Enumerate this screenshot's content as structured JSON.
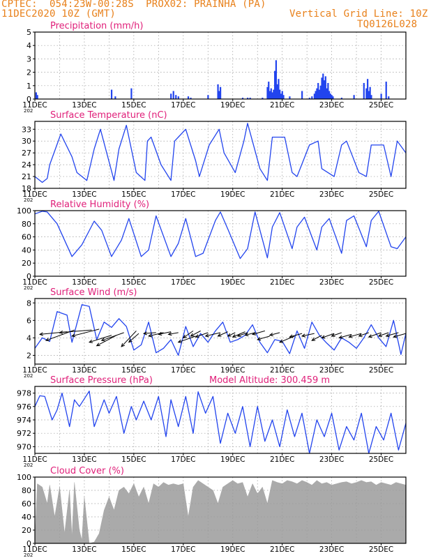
{
  "header": {
    "line1_left": "CPTEC:  054:23W-00:28S  PROX02: PRAINHA (PA)",
    "line2_left": "11DEC2020 10Z (GMT)",
    "line2_right": "Vertical Grid Line: 10Z",
    "line3_right": "TQ0126L028",
    "color": "#e8801a"
  },
  "x_ticks": [
    "11DEC",
    "13DEC",
    "15DEC",
    "17DEC",
    "19DEC",
    "21DEC",
    "23DEC",
    "25DEC"
  ],
  "x_sub": "202",
  "colors": {
    "series": "#2244ee",
    "title": "#e0207a",
    "cloud": "#aaaaaa",
    "grid": "#999999"
  },
  "chart_data": [
    {
      "id": "precip",
      "type": "bar",
      "title": "Precipitation (mm/h)",
      "xlim": [
        0,
        15
      ],
      "ylim": [
        0,
        5
      ],
      "yticks": [
        0,
        1,
        2,
        3,
        4,
        5
      ],
      "x": [
        0.05,
        0.1,
        3.1,
        3.25,
        3.9,
        5.5,
        5.6,
        5.7,
        5.8,
        6.2,
        6.3,
        7.0,
        7.4,
        7.45,
        7.5,
        8.4,
        8.6,
        8.7,
        9.2,
        9.4,
        9.45,
        9.5,
        9.55,
        9.6,
        9.65,
        9.7,
        9.75,
        9.8,
        9.85,
        9.9,
        9.95,
        10.0,
        10.05,
        10.3,
        10.8,
        11.1,
        11.2,
        11.3,
        11.35,
        11.4,
        11.45,
        11.5,
        11.55,
        11.6,
        11.65,
        11.7,
        11.75,
        11.8,
        11.85,
        11.9,
        11.95,
        12.0,
        12.05,
        12.4,
        12.9,
        13.3,
        13.4,
        13.45,
        13.5,
        13.55,
        13.6,
        14.0,
        14.2,
        14.3
      ],
      "values": [
        0.5,
        0.3,
        0.7,
        0.2,
        0.8,
        0.4,
        0.6,
        0.3,
        0.2,
        0.2,
        0.1,
        0.3,
        1.1,
        0.6,
        0.9,
        0.1,
        0.1,
        0.1,
        0.1,
        0.9,
        1.3,
        0.6,
        0.8,
        0.5,
        0.7,
        2.1,
        2.9,
        1.1,
        1.5,
        0.7,
        0.4,
        0.6,
        0.3,
        0.2,
        0.6,
        0.1,
        0.2,
        0.4,
        0.6,
        0.8,
        1.2,
        0.7,
        1.0,
        1.6,
        1.9,
        1.4,
        1.7,
        0.8,
        1.2,
        0.6,
        0.4,
        0.3,
        0.2,
        0.1,
        0.3,
        1.2,
        0.8,
        1.5,
        0.6,
        0.9,
        0.3,
        0.4,
        1.3,
        0.2
      ]
    },
    {
      "id": "temp",
      "type": "line",
      "title": "Surface Temperature (nC)",
      "xlim": [
        0,
        15
      ],
      "ylim": [
        18,
        35
      ],
      "yticks": [
        18,
        21,
        24,
        27,
        30,
        33
      ],
      "x": [
        0,
        0.3,
        0.5,
        0.6,
        1.05,
        1.5,
        1.7,
        2.1,
        2.4,
        2.65,
        3.2,
        3.4,
        3.7,
        4.1,
        4.45,
        4.55,
        4.7,
        5.1,
        5.5,
        5.65,
        6.1,
        6.5,
        6.65,
        7.05,
        7.45,
        7.65,
        8.1,
        8.45,
        8.6,
        9.1,
        9.4,
        9.6,
        10.1,
        10.4,
        10.6,
        11.1,
        11.45,
        11.6,
        12.1,
        12.4,
        12.6,
        13.1,
        13.4,
        13.6,
        14.1,
        14.4,
        14.65,
        15
      ],
      "y": [
        21,
        19.5,
        20.5,
        24,
        31.8,
        26,
        22,
        20,
        28,
        33,
        20,
        28,
        34,
        22,
        20,
        30,
        31,
        24,
        20,
        30,
        33,
        25,
        21,
        29,
        33,
        27,
        22,
        30,
        34.5,
        23,
        20,
        31,
        31,
        22,
        21,
        29,
        30,
        23,
        21,
        29,
        30,
        22,
        21,
        29,
        29,
        21,
        30,
        27
      ]
    },
    {
      "id": "rh",
      "type": "line",
      "title": "Relative Humidity (%)",
      "xlim": [
        0,
        15
      ],
      "ylim": [
        0,
        100
      ],
      "yticks": [
        0,
        20,
        40,
        60,
        80,
        100
      ],
      "x": [
        0,
        0.3,
        0.5,
        0.9,
        1.5,
        1.9,
        2.4,
        2.7,
        3.1,
        3.5,
        3.8,
        4.3,
        4.6,
        4.9,
        5.5,
        5.8,
        6.1,
        6.5,
        6.8,
        7.3,
        7.5,
        7.8,
        8.3,
        8.6,
        8.9,
        9.4,
        9.6,
        9.9,
        10.4,
        10.6,
        10.9,
        11.4,
        11.6,
        11.9,
        12.4,
        12.6,
        12.9,
        13.4,
        13.6,
        13.9,
        14.4,
        14.65,
        15
      ],
      "y": [
        95,
        99,
        98,
        80,
        30,
        48,
        84,
        70,
        30,
        55,
        88,
        30,
        40,
        92,
        30,
        50,
        88,
        30,
        35,
        85,
        98,
        72,
        27,
        42,
        98,
        28,
        75,
        97,
        42,
        75,
        90,
        40,
        75,
        88,
        35,
        85,
        92,
        45,
        85,
        99,
        45,
        42,
        60
      ]
    },
    {
      "id": "wind",
      "type": "line",
      "title": "Surface Wind (m/s)",
      "xlim": [
        0,
        15
      ],
      "ylim": [
        1,
        8.5
      ],
      "yticks": [
        2,
        4,
        6,
        8
      ],
      "x": [
        0,
        0.3,
        0.6,
        0.9,
        1.3,
        1.5,
        1.9,
        2.2,
        2.5,
        2.8,
        3.1,
        3.4,
        3.7,
        4.0,
        4.3,
        4.6,
        4.9,
        5.2,
        5.5,
        5.8,
        6.1,
        6.4,
        6.7,
        7.0,
        7.3,
        7.6,
        7.9,
        8.2,
        8.5,
        8.8,
        9.1,
        9.4,
        9.7,
        10.0,
        10.3,
        10.6,
        10.9,
        11.2,
        11.5,
        11.8,
        12.1,
        12.4,
        12.7,
        13.0,
        13.3,
        13.6,
        13.9,
        14.2,
        14.5,
        14.8,
        15
      ],
      "y": [
        2.8,
        4.0,
        3.6,
        7.0,
        6.6,
        3.5,
        7.8,
        7.6,
        3.8,
        5.8,
        5.2,
        6.2,
        5.3,
        2.6,
        3.2,
        5.8,
        2.3,
        2.8,
        3.8,
        2.0,
        5.3,
        3.0,
        4.5,
        3.5,
        4.8,
        5.8,
        3.5,
        3.8,
        4.3,
        5.5,
        3.5,
        2.3,
        3.8,
        3.6,
        2.2,
        4.8,
        2.8,
        5.8,
        4.3,
        3.4,
        2.6,
        4.0,
        3.5,
        2.8,
        4.0,
        5.5,
        4.0,
        3.0,
        6.0,
        2.1,
        4.5
      ],
      "barbs": [
        [
          0.2,
          4.4,
          1.3,
          4.7
        ],
        [
          0.45,
          3.7,
          1.6,
          4.9
        ],
        [
          1.0,
          4.6,
          2.3,
          4.9
        ],
        [
          1.5,
          4.2,
          2.6,
          5.0
        ],
        [
          2.2,
          3.5,
          3.1,
          4.3
        ],
        [
          2.7,
          3.7,
          3.6,
          4.6
        ],
        [
          2.5,
          3.1,
          3.3,
          4.3
        ],
        [
          3.5,
          3.0,
          4.1,
          4.8
        ],
        [
          3.8,
          3.5,
          4.2,
          4.5
        ],
        [
          4.4,
          4.5,
          4.9,
          4.6
        ],
        [
          4.6,
          4.2,
          5.2,
          4.6
        ],
        [
          5.0,
          4.4,
          5.5,
          4.7
        ],
        [
          5.4,
          4.4,
          5.8,
          4.6
        ],
        [
          5.8,
          3.5,
          6.5,
          4.2
        ],
        [
          6.0,
          4.0,
          6.4,
          4.8
        ],
        [
          6.3,
          4.2,
          6.7,
          4.8
        ],
        [
          6.5,
          4.1,
          7.0,
          4.6
        ],
        [
          6.9,
          4.2,
          7.5,
          4.6
        ],
        [
          7.4,
          4.2,
          7.8,
          4.7
        ],
        [
          7.8,
          4.2,
          8.1,
          4.6
        ],
        [
          8.0,
          4.1,
          8.5,
          4.7
        ],
        [
          8.2,
          4.2,
          8.6,
          4.6
        ],
        [
          8.5,
          4.3,
          8.9,
          4.6
        ],
        [
          8.8,
          4.4,
          9.3,
          4.8
        ],
        [
          9.0,
          3.8,
          9.5,
          4.2
        ],
        [
          9.5,
          4.3,
          9.9,
          4.6
        ],
        [
          9.9,
          3.5,
          10.5,
          4.2
        ],
        [
          10.3,
          4.1,
          10.8,
          4.5
        ],
        [
          10.8,
          4.2,
          11.3,
          4.5
        ],
        [
          11.2,
          3.7,
          11.6,
          4.3
        ],
        [
          11.6,
          4.0,
          12.1,
          4.5
        ],
        [
          12.0,
          4.2,
          12.4,
          4.6
        ],
        [
          12.3,
          4.0,
          12.8,
          4.4
        ],
        [
          12.7,
          4.1,
          13.2,
          4.5
        ],
        [
          13.1,
          4.2,
          13.5,
          4.6
        ],
        [
          13.5,
          4.1,
          14.0,
          4.6
        ],
        [
          13.9,
          4.2,
          14.3,
          4.6
        ],
        [
          14.2,
          4.2,
          14.7,
          4.6
        ],
        [
          14.5,
          4.1,
          15.0,
          4.5
        ]
      ]
    },
    {
      "id": "press",
      "type": "line",
      "title": "Surface Pressure (hPa)",
      "extra_label": "Model Altitude: 300.459 m",
      "xlim": [
        0,
        15
      ],
      "ylim": [
        969,
        979
      ],
      "yticks": [
        970,
        972,
        974,
        976,
        978
      ],
      "x": [
        0,
        0.2,
        0.4,
        0.7,
        0.9,
        1.1,
        1.4,
        1.6,
        1.8,
        2.2,
        2.4,
        2.8,
        3.0,
        3.3,
        3.6,
        3.9,
        4.1,
        4.4,
        4.7,
        5.0,
        5.3,
        5.5,
        5.8,
        6.1,
        6.4,
        6.6,
        6.9,
        7.2,
        7.5,
        7.8,
        8.1,
        8.4,
        8.7,
        9.0,
        9.3,
        9.6,
        9.9,
        10.2,
        10.5,
        10.8,
        11.1,
        11.4,
        11.7,
        12.0,
        12.3,
        12.6,
        12.9,
        13.2,
        13.5,
        13.8,
        14.1,
        14.4,
        14.7,
        15
      ],
      "y": [
        976,
        977.6,
        977.5,
        974,
        975.5,
        978,
        973,
        977,
        976,
        978.3,
        973,
        977,
        975,
        977.5,
        972,
        976,
        974,
        976.8,
        974,
        977.5,
        971.5,
        977,
        973,
        977.5,
        972,
        978.2,
        975,
        977.5,
        970.5,
        975,
        972,
        976,
        970,
        976,
        970.8,
        974,
        970,
        975.5,
        971.5,
        975,
        969,
        974,
        971.5,
        975,
        969.5,
        973,
        971,
        975,
        969,
        973,
        971,
        975,
        969.5,
        973.5
      ]
    },
    {
      "id": "cloud",
      "type": "area",
      "title": "Cloud Cover (%)",
      "xlim": [
        0,
        15
      ],
      "ylim": [
        0,
        100
      ],
      "yticks": [
        0,
        20,
        40,
        60,
        80,
        100
      ],
      "x": [
        0,
        0.1,
        0.3,
        0.5,
        0.6,
        0.8,
        1.0,
        1.2,
        1.4,
        1.5,
        1.6,
        1.8,
        1.9,
        2.0,
        2.2,
        2.4,
        2.6,
        2.8,
        3.0,
        3.2,
        3.4,
        3.6,
        3.8,
        4.0,
        4.2,
        4.4,
        4.6,
        4.8,
        5.0,
        5.2,
        5.4,
        5.6,
        5.8,
        6.0,
        6.2,
        6.4,
        6.6,
        6.8,
        7.0,
        7.2,
        7.4,
        7.6,
        7.8,
        8.0,
        8.2,
        8.4,
        8.6,
        8.8,
        9.0,
        9.2,
        9.4,
        9.6,
        9.8,
        10.0,
        10.2,
        10.4,
        10.6,
        10.8,
        11.0,
        11.2,
        11.4,
        11.6,
        11.8,
        12.0,
        12.2,
        12.4,
        12.6,
        12.8,
        13.0,
        13.2,
        13.4,
        13.6,
        13.8,
        14.0,
        14.2,
        14.4,
        14.6,
        14.8,
        15
      ],
      "y": [
        5,
        90,
        85,
        60,
        88,
        40,
        85,
        15,
        80,
        10,
        92,
        20,
        5,
        70,
        0,
        2,
        15,
        50,
        70,
        50,
        80,
        85,
        75,
        90,
        70,
        85,
        60,
        90,
        85,
        92,
        88,
        90,
        88,
        90,
        40,
        85,
        95,
        90,
        85,
        80,
        60,
        85,
        90,
        95,
        90,
        92,
        70,
        90,
        75,
        85,
        60,
        95,
        92,
        90,
        95,
        93,
        90,
        95,
        92,
        88,
        95,
        90,
        92,
        88,
        90,
        92,
        93,
        90,
        92,
        95,
        92,
        93,
        88,
        92,
        90,
        88,
        92,
        90,
        88
      ]
    }
  ]
}
